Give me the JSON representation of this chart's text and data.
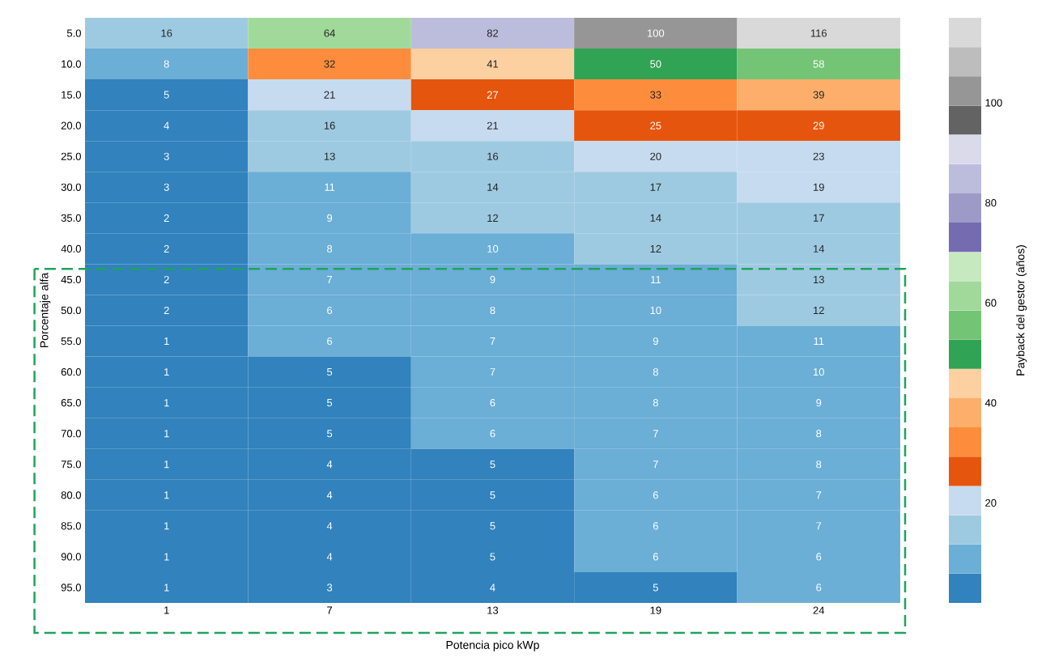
{
  "chart_data": {
    "type": "heatmap",
    "xlabel": "Potencia pico kWp",
    "ylabel": "Porcentaje alfa",
    "clabel": "Payback del gestor (años)",
    "categories": [
      "1",
      "7",
      "13",
      "19",
      "24"
    ],
    "y_categories": [
      "5.0",
      "10.0",
      "15.0",
      "20.0",
      "25.0",
      "30.0",
      "35.0",
      "40.0",
      "45.0",
      "50.0",
      "55.0",
      "60.0",
      "65.0",
      "70.0",
      "75.0",
      "80.0",
      "85.0",
      "90.0",
      "95.0"
    ],
    "cells": [
      [
        16,
        64,
        82,
        100,
        116
      ],
      [
        8,
        32,
        41,
        50,
        58
      ],
      [
        5,
        21,
        27,
        33,
        39
      ],
      [
        4,
        16,
        21,
        25,
        29
      ],
      [
        3,
        13,
        16,
        20,
        23
      ],
      [
        3,
        11,
        14,
        17,
        19
      ],
      [
        2,
        9,
        12,
        14,
        17
      ],
      [
        2,
        8,
        10,
        12,
        14
      ],
      [
        2,
        7,
        9,
        11,
        13
      ],
      [
        2,
        6,
        8,
        10,
        12
      ],
      [
        1,
        6,
        7,
        9,
        11
      ],
      [
        1,
        5,
        7,
        8,
        10
      ],
      [
        1,
        5,
        6,
        8,
        9
      ],
      [
        1,
        5,
        6,
        7,
        8
      ],
      [
        1,
        4,
        5,
        7,
        8
      ],
      [
        1,
        4,
        5,
        6,
        7
      ],
      [
        1,
        4,
        5,
        6,
        7
      ],
      [
        1,
        4,
        5,
        6,
        6
      ],
      [
        1,
        3,
        4,
        5,
        6
      ]
    ],
    "cell_labels": [
      [
        "16",
        "64",
        "82",
        "100",
        "116"
      ],
      [
        "8",
        "32",
        "41",
        "50",
        "58"
      ],
      [
        "5",
        "21",
        "27",
        "33",
        "39"
      ],
      [
        "4",
        "16",
        "21",
        "25",
        "29"
      ],
      [
        "3",
        "13",
        "16",
        "20",
        "23"
      ],
      [
        "3",
        "11",
        "14",
        "17",
        "19"
      ],
      [
        "2",
        "9",
        "12",
        "14",
        "17"
      ],
      [
        "2",
        "8",
        "10",
        "12",
        "14"
      ],
      [
        "2",
        "7",
        "9",
        "11",
        "13"
      ],
      [
        "2",
        "6",
        "8",
        "10",
        "12"
      ],
      [
        "1",
        "6",
        "7",
        "9",
        "11"
      ],
      [
        "1",
        "5",
        "7",
        "8",
        "10"
      ],
      [
        "1",
        "5",
        "6",
        "8",
        "9"
      ],
      [
        "1",
        "5",
        "6",
        "7",
        "8"
      ],
      [
        "1",
        "4",
        "5",
        "7",
        "8"
      ],
      [
        "1",
        "4",
        "5",
        "6",
        "7"
      ],
      [
        "1",
        "4",
        "5",
        "6",
        "7"
      ],
      [
        "1",
        "4",
        "5",
        "6",
        "6"
      ],
      [
        "1",
        "3",
        "4",
        "5",
        "6"
      ]
    ],
    "clim": [
      0,
      117
    ],
    "cticks": [
      20,
      40,
      60,
      80,
      100
    ]
  }
}
